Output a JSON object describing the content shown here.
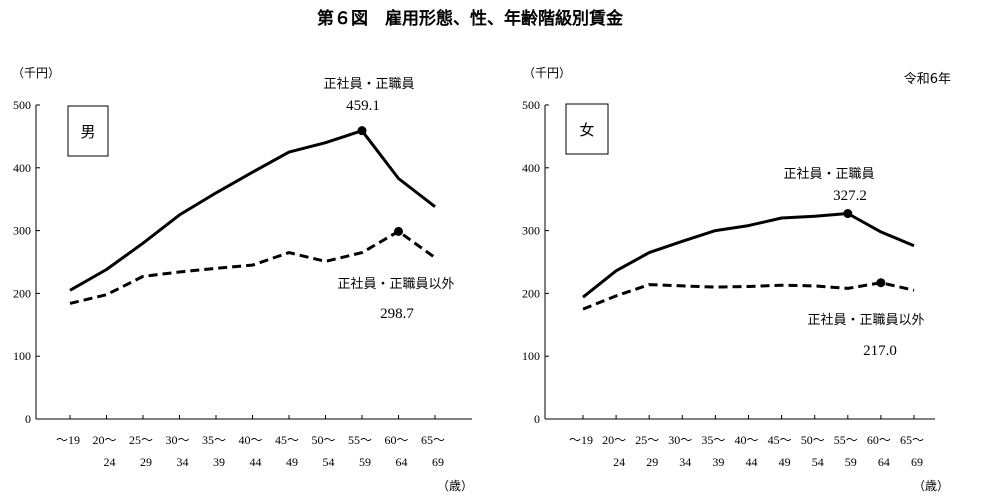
{
  "figure": {
    "title": "第６図　雇用形態、性、年齢階級別賃金",
    "era_note": "令和6年"
  },
  "chart_data": [
    {
      "type": "line",
      "panel_label": "男",
      "ylabel": "（千円）",
      "xlabel": "（歳）",
      "ylim": [
        0,
        500
      ],
      "yticks": [
        0,
        100,
        200,
        300,
        400,
        500
      ],
      "categories": [
        {
          "line1": "～19",
          "line2": ""
        },
        {
          "line1": "20～",
          "line2": "24"
        },
        {
          "line1": "25～",
          "line2": "29"
        },
        {
          "line1": "30～",
          "line2": "34"
        },
        {
          "line1": "35～",
          "line2": "39"
        },
        {
          "line1": "40～",
          "line2": "44"
        },
        {
          "line1": "45～",
          "line2": "49"
        },
        {
          "line1": "50～",
          "line2": "54"
        },
        {
          "line1": "55～",
          "line2": "59"
        },
        {
          "line1": "60～",
          "line2": "64"
        },
        {
          "line1": "65～",
          "line2": "69"
        }
      ],
      "series": [
        {
          "name": "正社員・正職員",
          "style": "solid",
          "values": [
            205,
            238,
            280,
            325,
            360,
            393,
            425,
            440,
            459.1,
            383,
            338
          ],
          "peak_index": 8,
          "peak_label": "459.1"
        },
        {
          "name": "正社員・正職員以外",
          "style": "dashed",
          "values": [
            184,
            198,
            227,
            234,
            240,
            245,
            265,
            251,
            265,
            298.7,
            257
          ],
          "peak_index": 9,
          "peak_label": "298.7"
        }
      ]
    },
    {
      "type": "line",
      "panel_label": "女",
      "ylabel": "（千円）",
      "xlabel": "（歳）",
      "ylim": [
        0,
        500
      ],
      "yticks": [
        0,
        100,
        200,
        300,
        400,
        500
      ],
      "categories": [
        {
          "line1": "～19",
          "line2": ""
        },
        {
          "line1": "20～",
          "line2": "24"
        },
        {
          "line1": "25～",
          "line2": "29"
        },
        {
          "line1": "30～",
          "line2": "34"
        },
        {
          "line1": "35～",
          "line2": "39"
        },
        {
          "line1": "40～",
          "line2": "44"
        },
        {
          "line1": "45～",
          "line2": "49"
        },
        {
          "line1": "50～",
          "line2": "54"
        },
        {
          "line1": "55～",
          "line2": "59"
        },
        {
          "line1": "60～",
          "line2": "64"
        },
        {
          "line1": "65～",
          "line2": "69"
        }
      ],
      "series": [
        {
          "name": "正社員・正職員",
          "style": "solid",
          "values": [
            194,
            236,
            265,
            283,
            300,
            308,
            320,
            323,
            327.2,
            298,
            276
          ],
          "peak_index": 8,
          "peak_label": "327.2"
        },
        {
          "name": "正社員・正職員以外",
          "style": "dashed",
          "values": [
            175,
            196,
            214,
            212,
            210,
            211,
            213,
            212,
            208,
            217.0,
            205
          ],
          "peak_index": 9,
          "peak_label": "217.0"
        }
      ]
    }
  ]
}
